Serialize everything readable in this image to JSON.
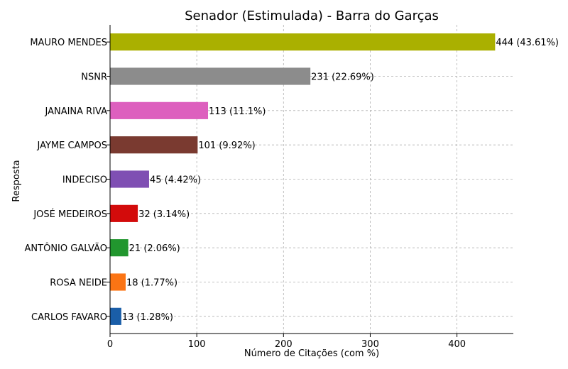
{
  "chart_data": {
    "type": "bar",
    "orientation": "horizontal",
    "title": "Senador (Estimulada) - Barra do Garças",
    "xlabel": "Número de Citações (com %)",
    "ylabel": "Resposta",
    "xlim": [
      0,
      465
    ],
    "xticks": [
      0,
      100,
      200,
      300,
      400
    ],
    "grid": true,
    "categories": [
      "MAURO MENDES",
      "NSNR",
      "JANAINA RIVA",
      "JAYME CAMPOS",
      "INDECISO",
      "JOSÉ MEDEIROS",
      "ANTÔNIO GALVÃO",
      "ROSA NEIDE",
      "CARLOS FAVARO"
    ],
    "values": [
      444,
      231,
      113,
      101,
      45,
      32,
      21,
      18,
      13
    ],
    "data_labels": [
      "444 (43.61%)",
      "231 (22.69%)",
      "113 (11.1%)",
      "101 (9.92%)",
      "45 (4.42%)",
      "32 (3.14%)",
      "21 (2.06%)",
      "18 (1.77%)",
      "13 (1.28%)"
    ],
    "colors": [
      "#aab000",
      "#8c8c8c",
      "#dd5fbe",
      "#7a3a30",
      "#7f4fb3",
      "#d30b0b",
      "#21962e",
      "#fb7414",
      "#1a5ea8"
    ]
  }
}
